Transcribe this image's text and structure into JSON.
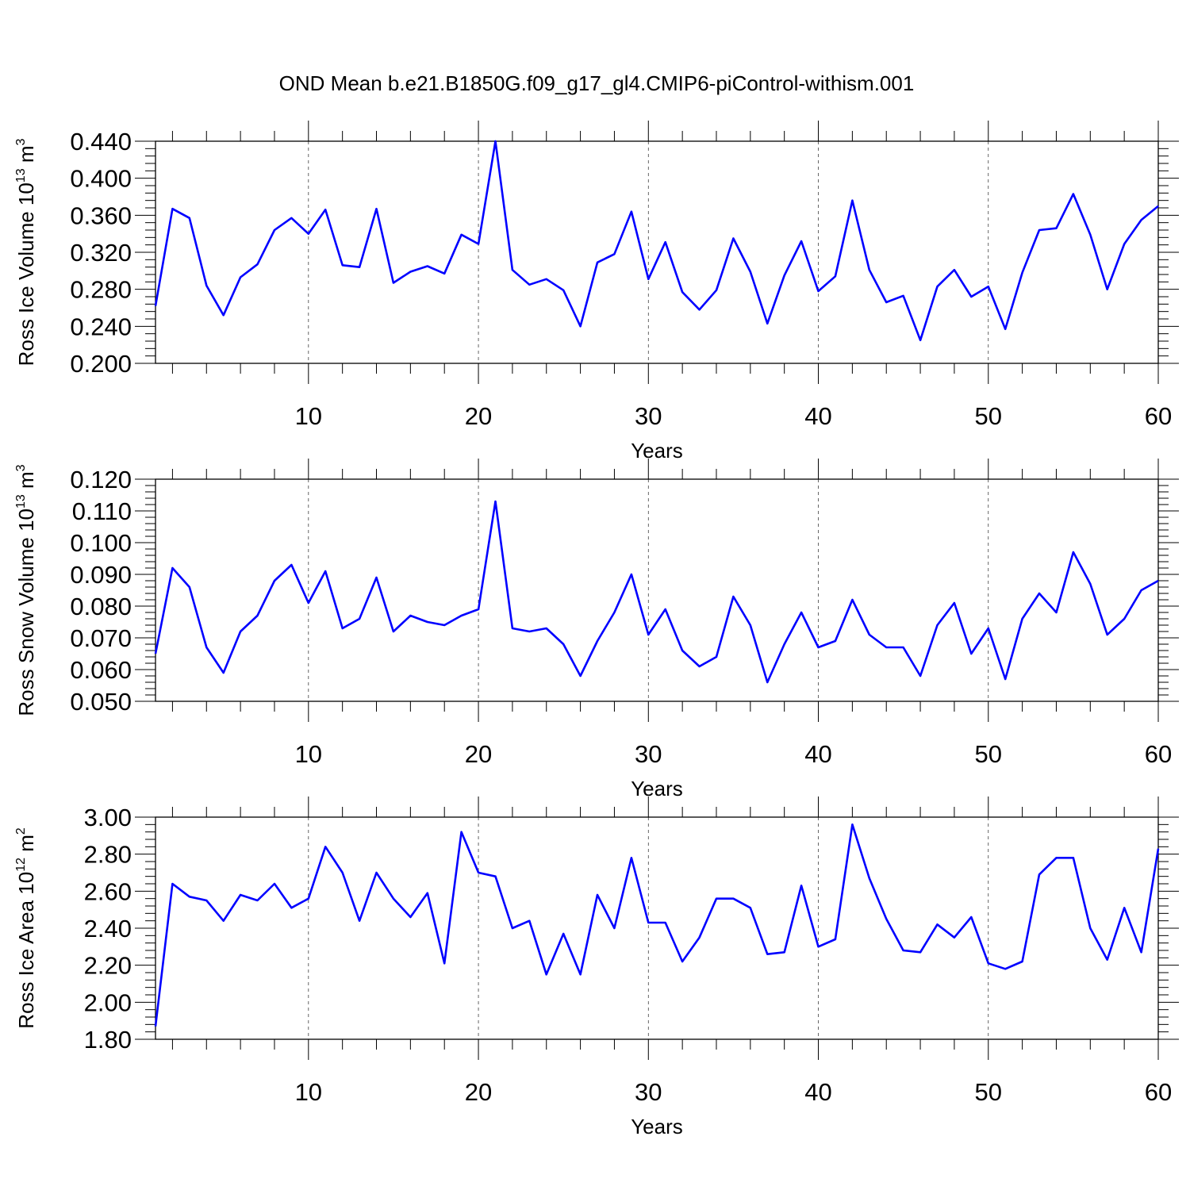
{
  "figure_title": "OND Mean b.e21.B1850G.f09_g17_gl4.CMIP6-piControl-withism.001",
  "line_color": "#0000ff",
  "chart_data": [
    {
      "type": "line",
      "ylabel": {
        "text": "Ross Ice Volume 10",
        "exp": "13",
        "unit": " m",
        "unit_exp": "3"
      },
      "xlabel": "Years",
      "xlim": [
        1,
        60
      ],
      "ylim": [
        0.2,
        0.44
      ],
      "yticks": [
        "0.200",
        "0.240",
        "0.280",
        "0.320",
        "0.360",
        "0.400",
        "0.440"
      ],
      "xticks": [
        "10",
        "20",
        "30",
        "40",
        "50",
        "60"
      ],
      "grid": "dashed vertical at x ticks",
      "x": [
        1,
        2,
        3,
        4,
        5,
        6,
        7,
        8,
        9,
        10,
        11,
        12,
        13,
        14,
        15,
        16,
        17,
        18,
        19,
        20,
        21,
        22,
        23,
        24,
        25,
        26,
        27,
        28,
        29,
        30,
        31,
        32,
        33,
        34,
        35,
        36,
        37,
        38,
        39,
        40,
        41,
        42,
        43,
        44,
        45,
        46,
        47,
        48,
        49,
        50,
        51,
        52,
        53,
        54,
        55,
        56,
        57,
        58,
        59,
        60
      ],
      "values": [
        0.262,
        0.367,
        0.357,
        0.284,
        0.252,
        0.293,
        0.307,
        0.344,
        0.357,
        0.34,
        0.366,
        0.306,
        0.304,
        0.367,
        0.287,
        0.299,
        0.305,
        0.297,
        0.339,
        0.329,
        0.44,
        0.301,
        0.285,
        0.291,
        0.279,
        0.24,
        0.309,
        0.318,
        0.364,
        0.291,
        0.331,
        0.277,
        0.258,
        0.279,
        0.335,
        0.299,
        0.243,
        0.295,
        0.332,
        0.278,
        0.294,
        0.376,
        0.301,
        0.266,
        0.273,
        0.225,
        0.283,
        0.301,
        0.272,
        0.283,
        0.237,
        0.298,
        0.344,
        0.346,
        0.383,
        0.339,
        0.28,
        0.329,
        0.355,
        0.37
      ]
    },
    {
      "type": "line",
      "ylabel": {
        "text": "Ross Snow Volume 10",
        "exp": "13",
        "unit": " m",
        "unit_exp": "3"
      },
      "xlabel": "Years",
      "xlim": [
        1,
        60
      ],
      "ylim": [
        0.05,
        0.12
      ],
      "yticks": [
        "0.050",
        "0.060",
        "0.070",
        "0.080",
        "0.090",
        "0.100",
        "0.110",
        "0.120"
      ],
      "xticks": [
        "10",
        "20",
        "30",
        "40",
        "50",
        "60"
      ],
      "grid": "dashed vertical at x ticks",
      "x": [
        1,
        2,
        3,
        4,
        5,
        6,
        7,
        8,
        9,
        10,
        11,
        12,
        13,
        14,
        15,
        16,
        17,
        18,
        19,
        20,
        21,
        22,
        23,
        24,
        25,
        26,
        27,
        28,
        29,
        30,
        31,
        32,
        33,
        34,
        35,
        36,
        37,
        38,
        39,
        40,
        41,
        42,
        43,
        44,
        45,
        46,
        47,
        48,
        49,
        50,
        51,
        52,
        53,
        54,
        55,
        56,
        57,
        58,
        59,
        60
      ],
      "values": [
        0.065,
        0.092,
        0.086,
        0.067,
        0.059,
        0.072,
        0.077,
        0.088,
        0.093,
        0.081,
        0.091,
        0.073,
        0.076,
        0.089,
        0.072,
        0.077,
        0.075,
        0.074,
        0.077,
        0.079,
        0.113,
        0.073,
        0.072,
        0.073,
        0.068,
        0.058,
        0.069,
        0.078,
        0.09,
        0.071,
        0.079,
        0.066,
        0.061,
        0.064,
        0.083,
        0.074,
        0.056,
        0.068,
        0.078,
        0.067,
        0.069,
        0.082,
        0.071,
        0.067,
        0.067,
        0.058,
        0.074,
        0.081,
        0.065,
        0.073,
        0.057,
        0.076,
        0.084,
        0.078,
        0.097,
        0.087,
        0.071,
        0.076,
        0.085,
        0.088
      ]
    },
    {
      "type": "line",
      "ylabel": {
        "text": "Ross Ice Area 10",
        "exp": "12",
        "unit": " m",
        "unit_exp": "2"
      },
      "xlabel": "Years",
      "xlim": [
        1,
        60
      ],
      "ylim": [
        1.8,
        3.0
      ],
      "yticks": [
        "1.80",
        "2.00",
        "2.20",
        "2.40",
        "2.60",
        "2.80",
        "3.00"
      ],
      "xticks": [
        "10",
        "20",
        "30",
        "40",
        "50",
        "60"
      ],
      "grid": "dashed vertical at x ticks",
      "x": [
        1,
        2,
        3,
        4,
        5,
        6,
        7,
        8,
        9,
        10,
        11,
        12,
        13,
        14,
        15,
        16,
        17,
        18,
        19,
        20,
        21,
        22,
        23,
        24,
        25,
        26,
        27,
        28,
        29,
        30,
        31,
        32,
        33,
        34,
        35,
        36,
        37,
        38,
        39,
        40,
        41,
        42,
        43,
        44,
        45,
        46,
        47,
        48,
        49,
        50,
        51,
        52,
        53,
        54,
        55,
        56,
        57,
        58,
        59,
        60
      ],
      "values": [
        1.87,
        2.64,
        2.57,
        2.55,
        2.44,
        2.58,
        2.55,
        2.64,
        2.51,
        2.56,
        2.84,
        2.7,
        2.44,
        2.7,
        2.56,
        2.46,
        2.59,
        2.21,
        2.92,
        2.7,
        2.68,
        2.4,
        2.44,
        2.15,
        2.37,
        2.15,
        2.58,
        2.4,
        2.78,
        2.43,
        2.43,
        2.22,
        2.35,
        2.56,
        2.56,
        2.51,
        2.26,
        2.27,
        2.63,
        2.3,
        2.34,
        2.96,
        2.67,
        2.45,
        2.28,
        2.27,
        2.42,
        2.35,
        2.46,
        2.21,
        2.18,
        2.22,
        2.69,
        2.78,
        2.78,
        2.4,
        2.23,
        2.51,
        2.27,
        2.83
      ]
    }
  ]
}
